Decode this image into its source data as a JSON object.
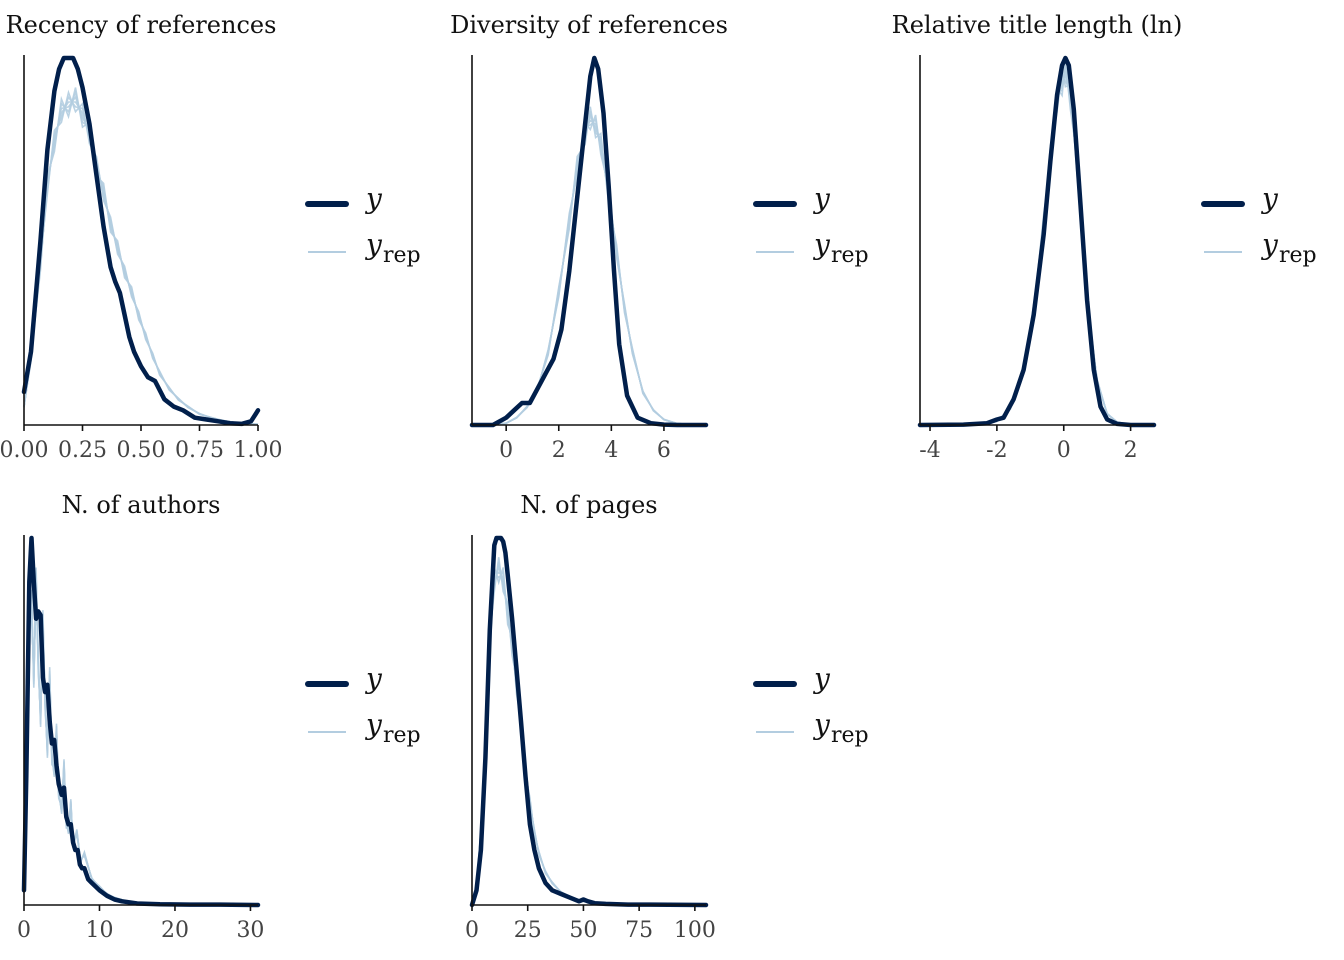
{
  "colors": {
    "y": "#011f4b",
    "yrep": "#b3cde0",
    "axis": "#111111"
  },
  "legend": {
    "y_label": "y",
    "yrep_label": "y",
    "yrep_sub": "rep"
  },
  "chart_data": [
    {
      "type": "line",
      "title": "Recency of references",
      "xlim": [
        0,
        1
      ],
      "ticks": [
        0,
        0.25,
        0.5,
        0.75,
        1
      ],
      "tick_labels": [
        "0.00",
        "0.25",
        "0.50",
        "0.75",
        "1.00"
      ],
      "series": [
        {
          "name": "y",
          "x": [
            0,
            0.03,
            0.07,
            0.1,
            0.13,
            0.15,
            0.17,
            0.19,
            0.21,
            0.23,
            0.25,
            0.28,
            0.31,
            0.34,
            0.37,
            0.39,
            0.41,
            0.43,
            0.45,
            0.47,
            0.5,
            0.53,
            0.56,
            0.6,
            0.64,
            0.68,
            0.73,
            0.78,
            0.83,
            0.88,
            0.93,
            0.97,
            0.99,
            1.0
          ],
          "y": [
            0.09,
            0.2,
            0.5,
            0.75,
            0.91,
            0.97,
            1.0,
            1.0,
            1.0,
            0.97,
            0.92,
            0.82,
            0.68,
            0.54,
            0.43,
            0.39,
            0.36,
            0.3,
            0.24,
            0.2,
            0.16,
            0.13,
            0.12,
            0.07,
            0.05,
            0.04,
            0.02,
            0.015,
            0.01,
            0.005,
            0.003,
            0.01,
            0.03,
            0.04
          ]
        },
        {
          "name": "y_rep",
          "x": [
            0,
            0.03,
            0.07,
            0.1,
            0.13,
            0.16,
            0.19,
            0.22,
            0.25,
            0.28,
            0.31,
            0.34,
            0.37,
            0.4,
            0.43,
            0.46,
            0.49,
            0.52,
            0.55,
            0.58,
            0.62,
            0.66,
            0.7,
            0.75,
            0.8,
            0.85,
            0.9,
            0.95,
            1.0
          ],
          "y": [
            0.05,
            0.18,
            0.44,
            0.65,
            0.78,
            0.85,
            0.88,
            0.88,
            0.85,
            0.79,
            0.71,
            0.63,
            0.55,
            0.48,
            0.42,
            0.36,
            0.3,
            0.24,
            0.19,
            0.14,
            0.1,
            0.07,
            0.05,
            0.03,
            0.02,
            0.012,
            0.007,
            0.004,
            0.002
          ]
        }
      ]
    },
    {
      "type": "line",
      "title": "Diversity of references",
      "xlim": [
        -1.3,
        7.6
      ],
      "ticks": [
        0,
        2,
        4,
        6
      ],
      "tick_labels": [
        "0",
        "2",
        "4",
        "6"
      ],
      "series": [
        {
          "name": "y",
          "x": [
            -1.3,
            -0.5,
            0,
            0.3,
            0.6,
            0.9,
            1.2,
            1.5,
            1.8,
            2.1,
            2.4,
            2.7,
            3.0,
            3.2,
            3.35,
            3.5,
            3.7,
            3.9,
            4.1,
            4.3,
            4.6,
            5.0,
            5.5,
            6.0,
            6.5,
            7.6
          ],
          "y": [
            0,
            0,
            0.02,
            0.04,
            0.06,
            0.06,
            0.1,
            0.14,
            0.18,
            0.26,
            0.42,
            0.62,
            0.82,
            0.95,
            1.0,
            0.97,
            0.85,
            0.65,
            0.42,
            0.22,
            0.08,
            0.02,
            0.005,
            0.001,
            0,
            0
          ]
        },
        {
          "name": "y_rep",
          "x": [
            -1.3,
            -0.5,
            0,
            0.4,
            0.8,
            1.2,
            1.6,
            2.0,
            2.4,
            2.7,
            3.0,
            3.2,
            3.4,
            3.6,
            3.9,
            4.2,
            4.5,
            4.8,
            5.2,
            5.6,
            6.0,
            6.5,
            7.6
          ],
          "y": [
            0,
            0,
            0.005,
            0.02,
            0.05,
            0.1,
            0.2,
            0.36,
            0.56,
            0.7,
            0.8,
            0.83,
            0.82,
            0.76,
            0.63,
            0.47,
            0.32,
            0.2,
            0.09,
            0.04,
            0.015,
            0.004,
            0
          ]
        }
      ]
    },
    {
      "type": "line",
      "title": "Relative title length (ln)",
      "xlim": [
        -4.3,
        2.7
      ],
      "ticks": [
        -4,
        -2,
        0,
        2
      ],
      "tick_labels": [
        "-4",
        "-2",
        "0",
        "2"
      ],
      "series": [
        {
          "name": "y",
          "x": [
            -4.3,
            -3.0,
            -2.3,
            -2.0,
            -1.8,
            -1.5,
            -1.2,
            -0.9,
            -0.6,
            -0.4,
            -0.2,
            -0.05,
            0.05,
            0.15,
            0.3,
            0.5,
            0.7,
            0.9,
            1.1,
            1.3,
            1.6,
            2.0,
            2.7
          ],
          "y": [
            0,
            0.001,
            0.005,
            0.015,
            0.02,
            0.07,
            0.15,
            0.3,
            0.52,
            0.72,
            0.9,
            0.98,
            1.0,
            0.98,
            0.86,
            0.6,
            0.34,
            0.15,
            0.05,
            0.015,
            0.003,
            0,
            0
          ]
        },
        {
          "name": "y_rep",
          "x": [
            -4.3,
            -3.0,
            -2.3,
            -2.0,
            -1.6,
            -1.2,
            -0.9,
            -0.6,
            -0.4,
            -0.2,
            -0.05,
            0.05,
            0.2,
            0.4,
            0.6,
            0.8,
            1.0,
            1.3,
            1.6,
            2.0,
            2.7
          ],
          "y": [
            0,
            0,
            0.004,
            0.01,
            0.045,
            0.15,
            0.32,
            0.55,
            0.74,
            0.88,
            0.94,
            0.95,
            0.9,
            0.7,
            0.46,
            0.26,
            0.12,
            0.03,
            0.008,
            0.001,
            0
          ]
        }
      ]
    },
    {
      "type": "line",
      "title": "N. of authors",
      "xlim": [
        0,
        31
      ],
      "ticks": [
        0,
        10,
        20,
        30
      ],
      "tick_labels": [
        "0",
        "10",
        "20",
        "30"
      ],
      "series": [
        {
          "name": "y",
          "x": [
            0,
            0.3,
            0.7,
            1.0,
            1.3,
            1.6,
            1.9,
            2.2,
            2.5,
            2.8,
            3.1,
            3.4,
            3.7,
            4.0,
            4.3,
            4.6,
            5.0,
            5.3,
            5.6,
            5.9,
            6.2,
            6.5,
            6.8,
            7.1,
            7.4,
            7.7,
            8.0,
            8.5,
            9.0,
            9.5,
            10,
            11,
            12,
            13,
            15,
            18,
            22,
            26,
            31
          ],
          "y": [
            0.04,
            0.35,
            0.88,
            1.0,
            0.88,
            0.78,
            0.8,
            0.79,
            0.62,
            0.58,
            0.6,
            0.5,
            0.44,
            0.45,
            0.38,
            0.33,
            0.3,
            0.32,
            0.24,
            0.22,
            0.22,
            0.17,
            0.15,
            0.15,
            0.11,
            0.1,
            0.1,
            0.07,
            0.06,
            0.05,
            0.04,
            0.025,
            0.015,
            0.01,
            0.004,
            0.002,
            0.001,
            0.001,
            0
          ]
        },
        {
          "name": "y_rep",
          "x": [
            0,
            0.3,
            0.7,
            1.0,
            1.3,
            1.6,
            1.9,
            2.2,
            2.5,
            2.8,
            3.1,
            3.4,
            3.7,
            4.0,
            4.3,
            4.6,
            5.0,
            5.3,
            5.6,
            5.9,
            6.2,
            6.5,
            7.0,
            7.5,
            8.0,
            9.0,
            10,
            11,
            12,
            14,
            17,
            22,
            31
          ],
          "y": [
            0.05,
            0.45,
            0.9,
            0.82,
            0.62,
            0.88,
            0.66,
            0.5,
            0.78,
            0.55,
            0.42,
            0.62,
            0.4,
            0.36,
            0.48,
            0.3,
            0.26,
            0.38,
            0.22,
            0.2,
            0.28,
            0.16,
            0.2,
            0.12,
            0.14,
            0.07,
            0.05,
            0.03,
            0.02,
            0.008,
            0.003,
            0.001,
            0
          ]
        }
      ]
    },
    {
      "type": "line",
      "title": "N. of pages",
      "xlim": [
        0,
        105
      ],
      "ticks": [
        0,
        25,
        50,
        75,
        100
      ],
      "tick_labels": [
        "0",
        "25",
        "50",
        "75",
        "100"
      ],
      "series": [
        {
          "name": "y",
          "x": [
            0,
            2,
            4,
            6,
            8,
            10,
            11,
            12,
            13,
            14,
            15,
            16,
            18,
            20,
            22,
            24,
            26,
            28,
            30,
            33,
            36,
            40,
            44,
            48,
            50,
            52,
            55,
            60,
            70,
            80,
            105
          ],
          "y": [
            0,
            0.04,
            0.15,
            0.4,
            0.75,
            0.98,
            1.0,
            1.0,
            1.0,
            0.99,
            0.96,
            0.9,
            0.78,
            0.64,
            0.5,
            0.35,
            0.22,
            0.15,
            0.1,
            0.06,
            0.04,
            0.03,
            0.02,
            0.01,
            0.015,
            0.01,
            0.005,
            0.003,
            0.001,
            0.001,
            0
          ]
        },
        {
          "name": "y_rep",
          "x": [
            0,
            2,
            4,
            6,
            8,
            10,
            12,
            14,
            16,
            18,
            20,
            22,
            24,
            26,
            28,
            30,
            33,
            36,
            40,
            45,
            50,
            60,
            70,
            80,
            105
          ],
          "y": [
            0,
            0.05,
            0.2,
            0.45,
            0.72,
            0.88,
            0.92,
            0.88,
            0.8,
            0.7,
            0.6,
            0.48,
            0.37,
            0.28,
            0.2,
            0.14,
            0.09,
            0.06,
            0.035,
            0.02,
            0.01,
            0.004,
            0.002,
            0.001,
            0
          ]
        }
      ]
    }
  ]
}
